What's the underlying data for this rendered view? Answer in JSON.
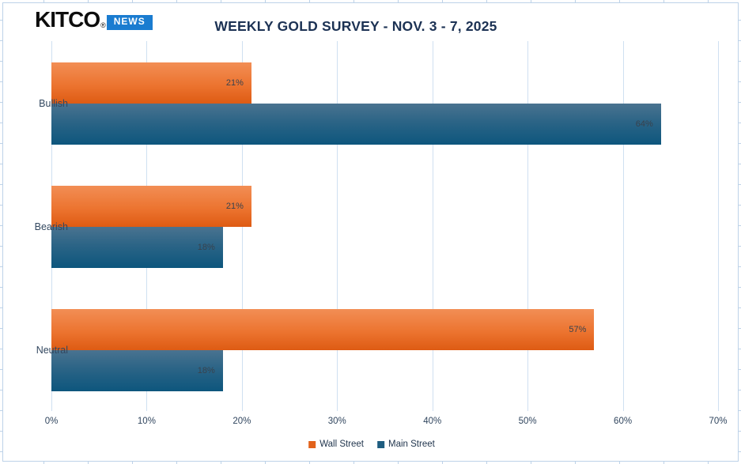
{
  "logo": {
    "brand": "KITCO",
    "registered_mark": "®",
    "badge": "NEWS"
  },
  "header": {
    "title": "WEEKLY GOLD SURVEY - NOV. 3 - 7, 2025"
  },
  "chart_data": {
    "type": "bar",
    "orientation": "horizontal",
    "title": "WEEKLY GOLD SURVEY - NOV. 3 - 7, 2025",
    "categories": [
      "Bullish",
      "Bearish",
      "Neutral"
    ],
    "series": [
      {
        "name": "Wall Street",
        "color": "#ED7D31",
        "values": [
          21,
          21,
          57
        ]
      },
      {
        "name": "Main Street",
        "color": "#1E5D80",
        "values": [
          64,
          18,
          18
        ]
      }
    ],
    "value_suffix": "%",
    "xlim": [
      0,
      70
    ],
    "x_ticks": [
      "0%",
      "10%",
      "20%",
      "30%",
      "40%",
      "50%",
      "60%",
      "70%"
    ],
    "xlabel": "",
    "ylabel": "",
    "grid": "vertical-only",
    "legend_position": "bottom-center",
    "data_labels": "inside-end"
  },
  "legend": {
    "items": [
      {
        "label": "Wall Street",
        "color": "#E2621B"
      },
      {
        "label": "Main Street",
        "color": "#1E5D80"
      }
    ]
  },
  "colors": {
    "title_text": "#1C3254",
    "axis_text": "#30455E",
    "gridline": "#CFE0F1",
    "frame_border": "#BDD2E8",
    "logo_badge_bg": "#1A7CD0",
    "wall_street_orange": "#ED7D31",
    "main_street_blue": "#1E5D80",
    "background": "#FFFFFF"
  }
}
